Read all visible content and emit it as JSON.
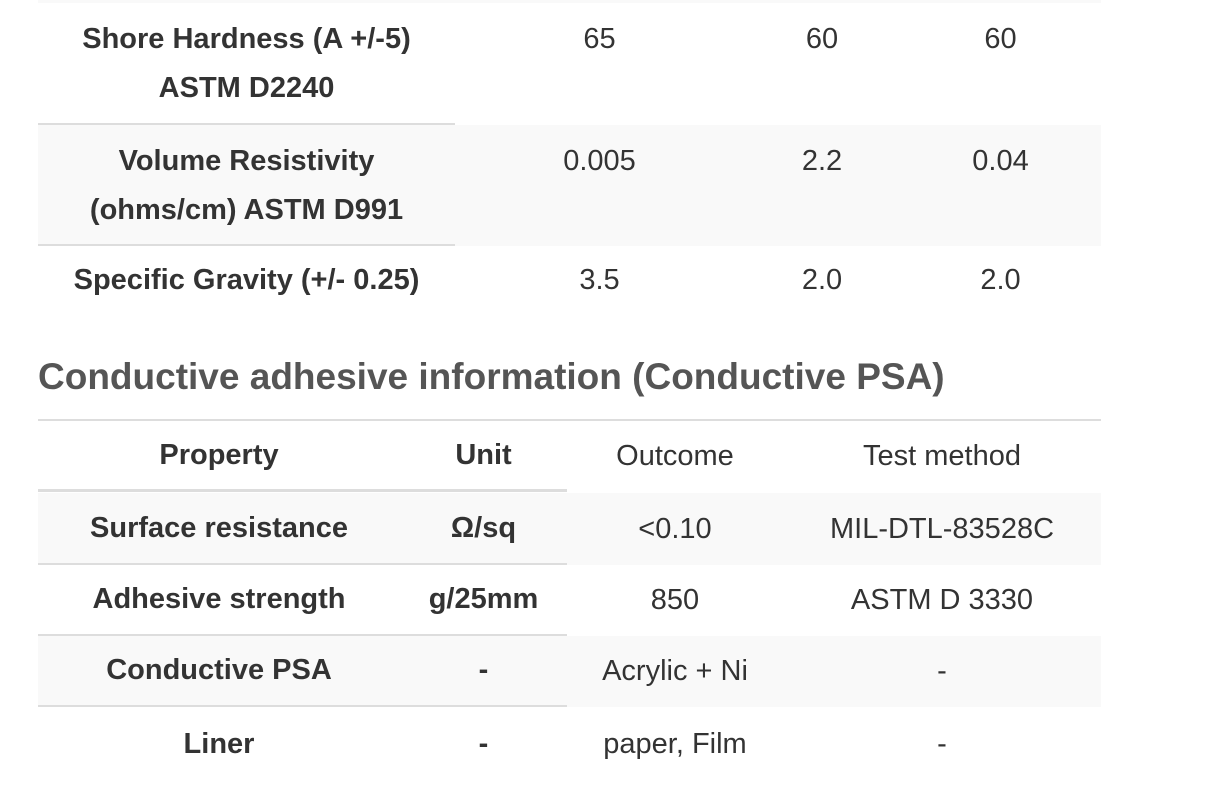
{
  "spec_table": {
    "rows": [
      [
        "Shore Hardness (A +/-5) ASTM D2240",
        "65",
        "60",
        "60"
      ],
      [
        "Volume Resistivity (ohms/cm) ASTM D991",
        "0.005",
        "2.2",
        "0.04"
      ],
      [
        "Specific Gravity (+/- 0.25)",
        "3.5",
        "2.0",
        "2.0"
      ]
    ]
  },
  "section": {
    "title": "Conductive adhesive information (Conductive PSA)"
  },
  "psa_table": {
    "header": [
      "Property",
      "Unit",
      "Outcome",
      "Test method"
    ],
    "rows": [
      [
        "Surface resistance",
        "Ω/sq",
        "<0.10",
        "MIL-DTL-83528C"
      ],
      [
        "Adhesive strength",
        "g/25mm",
        "850",
        "ASTM D 3330"
      ],
      [
        "Conductive PSA",
        "-",
        "Acrylic + Ni",
        "-"
      ],
      [
        "Liner",
        "-",
        "paper, Film",
        "-"
      ]
    ]
  }
}
